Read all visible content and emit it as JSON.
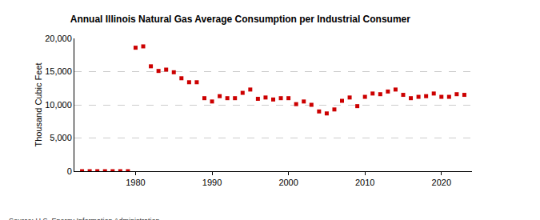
{
  "chart_data": {
    "type": "scatter",
    "title": "Annual Illinois Natural Gas Average Consumption per Industrial Consumer",
    "y_label": "Thousand Cubic Feet",
    "annotations": [
      "Source: U.S. Energy Information Administration"
    ],
    "x": [
      1973,
      1974,
      1975,
      1976,
      1977,
      1978,
      1979,
      1980,
      1981,
      1982,
      1983,
      1984,
      1985,
      1986,
      1987,
      1988,
      1989,
      1990,
      1991,
      1992,
      1993,
      1994,
      1995,
      1996,
      1997,
      1998,
      1999,
      2000,
      2001,
      2002,
      2003,
      2004,
      2005,
      2006,
      2007,
      2008,
      2009,
      2010,
      2011,
      2012,
      2013,
      2014,
      2015,
      2016,
      2017,
      2018,
      2019,
      2020,
      2021,
      2022,
      2023
    ],
    "values": [
      0,
      0,
      0,
      0,
      0,
      0,
      0,
      18600,
      18800,
      15800,
      15100,
      15300,
      14900,
      14000,
      13400,
      13400,
      11000,
      10500,
      11300,
      11000,
      11000,
      11800,
      12300,
      10900,
      11100,
      10800,
      11000,
      11000,
      10100,
      10500,
      10000,
      9000,
      8700,
      9300,
      10600,
      11100,
      9800,
      11200,
      11700,
      11600,
      12000,
      12300,
      11500,
      11000,
      11200,
      11300,
      11700,
      11200,
      11200,
      11600,
      11500
    ],
    "color": "#cc0000",
    "marker": "square",
    "xlim": [
      1972,
      2024
    ],
    "xticks": [
      1980,
      1990,
      2000,
      2010,
      2020
    ],
    "ylim": [
      0,
      20000
    ],
    "yticks": [
      0,
      {
        "value": 5000,
        "label": "5,000"
      },
      {
        "value": 10000,
        "label": "10,000"
      },
      {
        "value": 15000,
        "label": "15,000"
      },
      {
        "value": 20000,
        "label": "20,000"
      }
    ],
    "grid": true
  }
}
